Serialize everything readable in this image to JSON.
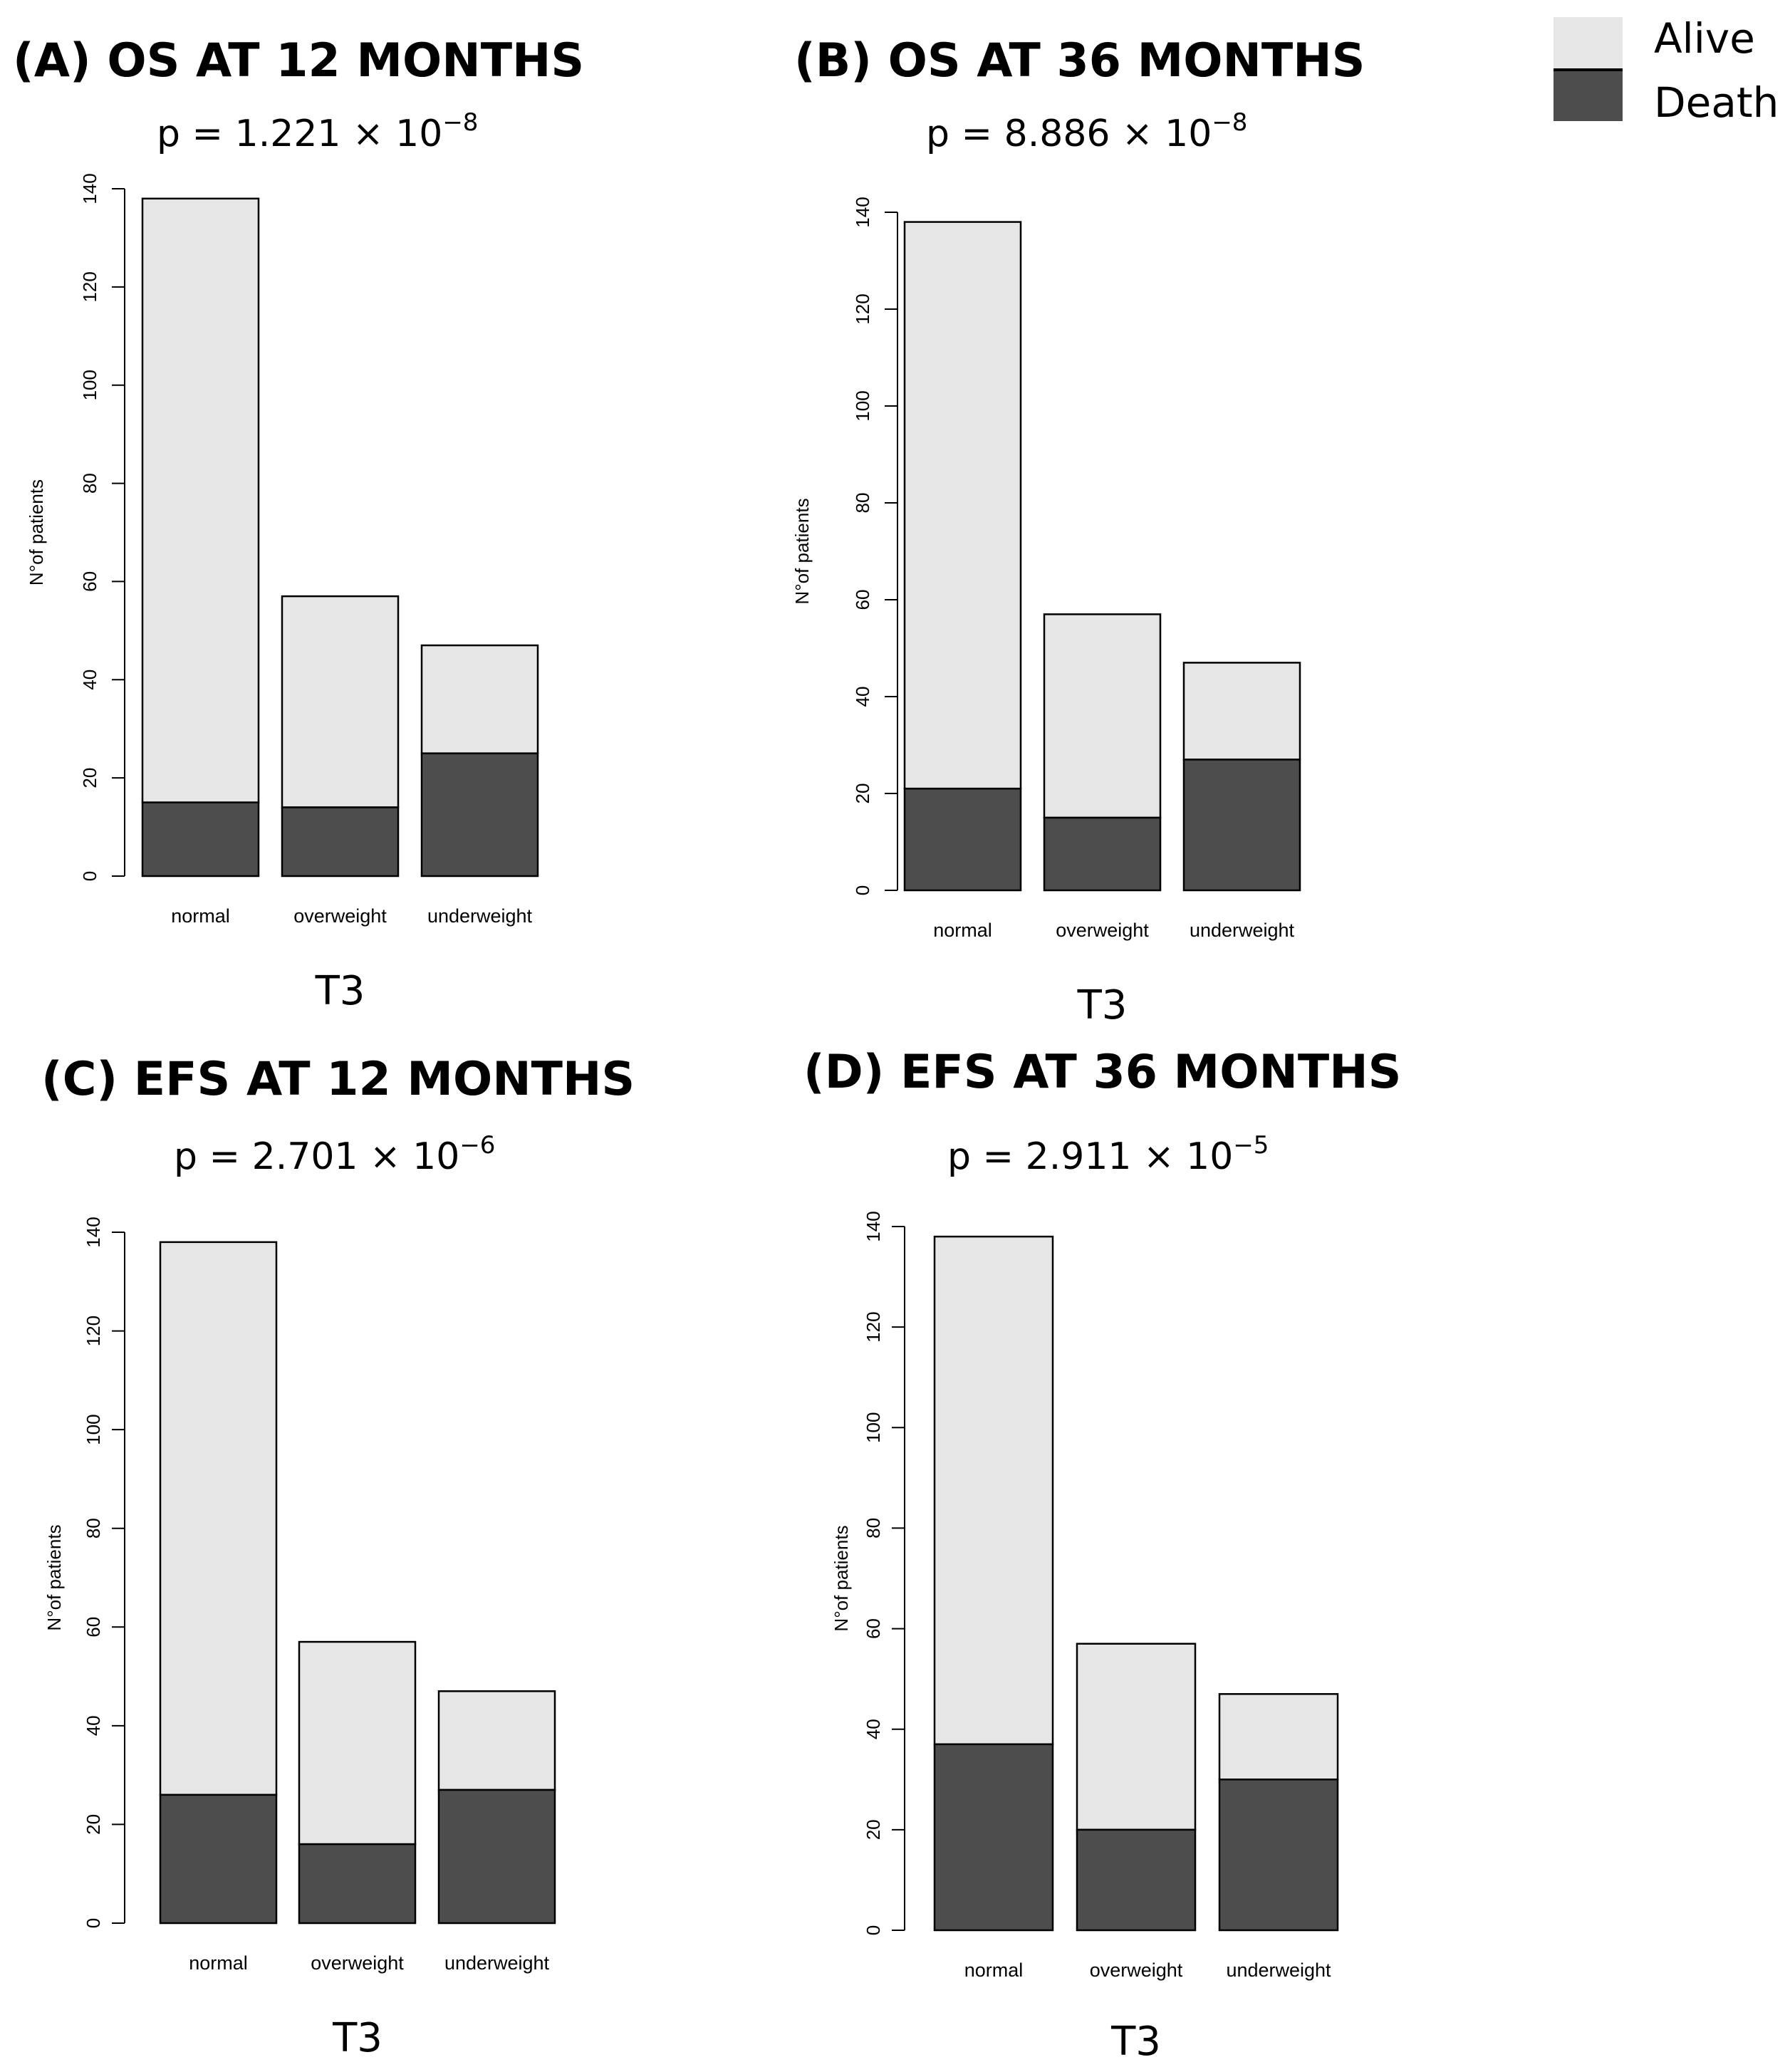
{
  "colors": {
    "alive": "#e6e6e6",
    "death": "#4d4d4d",
    "outline": "#000000"
  },
  "legend": {
    "items": [
      {
        "label": "Alive",
        "key": "alive"
      },
      {
        "label": "Death",
        "key": "death"
      }
    ]
  },
  "panels": [
    {
      "title": "(A) OS AT 12 MONTHS",
      "p_prefix": "p = 1.221 × 10",
      "p_exp": "−8",
      "xlabel": "T3"
    },
    {
      "title": "(B) OS AT 36 MONTHS",
      "p_prefix": "p = 8.886 × 10",
      "p_exp": "−8",
      "xlabel": "T3"
    },
    {
      "title": "(C) EFS AT 12 MONTHS",
      "p_prefix": "p = 2.701 × 10",
      "p_exp": "−6",
      "xlabel": "T3"
    },
    {
      "title": "(D) EFS AT 36 MONTHS",
      "p_prefix": "p = 2.911 × 10",
      "p_exp": "−5",
      "xlabel": "T3"
    }
  ],
  "chart_data": [
    {
      "type": "bar",
      "stacked": true,
      "title": "(A) OS AT 12 MONTHS",
      "categories": [
        "normal",
        "overweight",
        "underweight"
      ],
      "series": [
        {
          "name": "Death",
          "values": [
            15,
            14,
            25
          ]
        },
        {
          "name": "Alive",
          "values": [
            123,
            43,
            22
          ]
        }
      ],
      "xlabel": "T3",
      "ylabel": "N°of patients",
      "ylim": [
        0,
        140
      ],
      "yticks": [
        0,
        20,
        40,
        60,
        80,
        100,
        120,
        140
      ]
    },
    {
      "type": "bar",
      "stacked": true,
      "title": "(B) OS AT 36 MONTHS",
      "categories": [
        "normal",
        "overweight",
        "underweight"
      ],
      "series": [
        {
          "name": "Death",
          "values": [
            21,
            15,
            27
          ]
        },
        {
          "name": "Alive",
          "values": [
            117,
            42,
            20
          ]
        }
      ],
      "xlabel": "T3",
      "ylabel": "N°of patients",
      "ylim": [
        0,
        140
      ],
      "yticks": [
        0,
        20,
        40,
        60,
        80,
        100,
        120,
        140
      ]
    },
    {
      "type": "bar",
      "stacked": true,
      "title": "(C) EFS AT 12 MONTHS",
      "categories": [
        "normal",
        "overweight",
        "underweight"
      ],
      "series": [
        {
          "name": "Death",
          "values": [
            26,
            16,
            27
          ]
        },
        {
          "name": "Alive",
          "values": [
            112,
            41,
            20
          ]
        }
      ],
      "xlabel": "T3",
      "ylabel": "N°of patients",
      "ylim": [
        0,
        140
      ],
      "yticks": [
        0,
        20,
        40,
        60,
        80,
        100,
        120,
        140
      ]
    },
    {
      "type": "bar",
      "stacked": true,
      "title": "(D) EFS AT 36 MONTHS",
      "categories": [
        "normal",
        "overweight",
        "underweight"
      ],
      "series": [
        {
          "name": "Death",
          "values": [
            37,
            20,
            30
          ]
        },
        {
          "name": "Alive",
          "values": [
            101,
            37,
            17
          ]
        }
      ],
      "xlabel": "T3",
      "ylabel": "N°of patients",
      "ylim": [
        0,
        140
      ],
      "yticks": [
        0,
        20,
        40,
        60,
        80,
        100,
        120,
        140
      ]
    }
  ]
}
